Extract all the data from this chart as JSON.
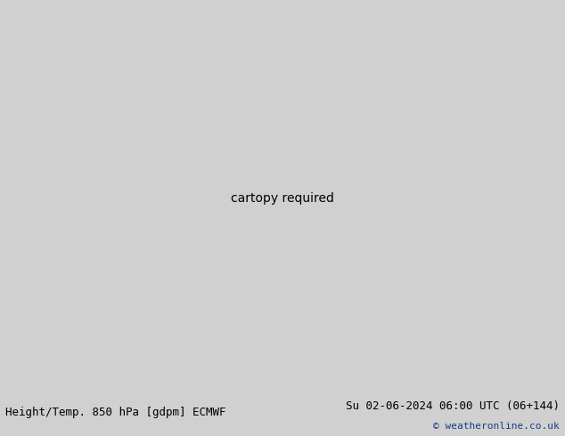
{
  "title_left": "Height/Temp. 850 hPa [gdpm] ECMWF",
  "title_right": "Su 02-06-2024 06:00 UTC (06+144)",
  "copyright": "© weatheronline.co.uk",
  "bg_color": "#d0d0d0",
  "land_color": "#c8c8c8",
  "green_fill": "#c8e878",
  "ocean_color": "#d0d0d0",
  "bottom_bar_color": "#e0e0e0",
  "title_color": "#000000",
  "copyright_color": "#1a3a8a",
  "figsize": [
    6.34,
    4.9
  ],
  "dpi": 100,
  "extent": [
    -175,
    -40,
    10,
    80
  ],
  "geop_color": "#000000",
  "geop_lw": 2.2,
  "cyan_color": "#00bbdd",
  "green_color": "#88cc44",
  "yellow_color": "#aacc00",
  "orange_color": "#ff9900",
  "red_color": "#dd2222",
  "magenta_color": "#cc00cc",
  "blue_color": "#3399ff"
}
